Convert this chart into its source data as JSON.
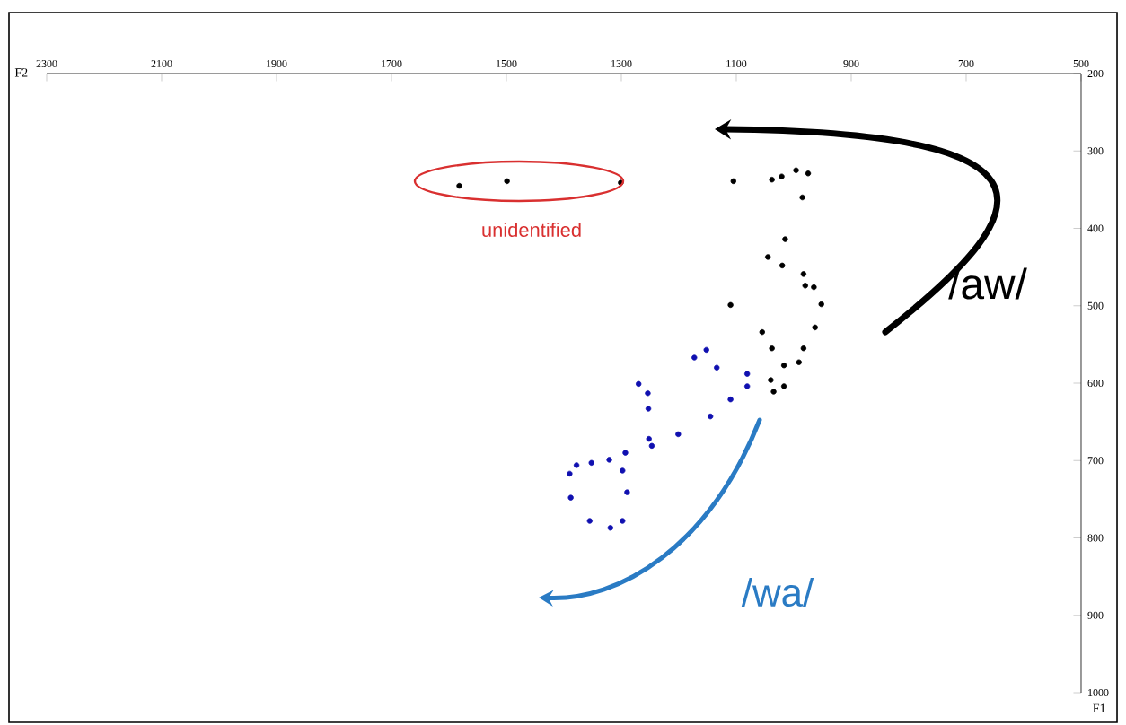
{
  "chart_data": {
    "type": "scatter",
    "xlabel": "F2",
    "ylabel": "F1",
    "xlim": [
      2300,
      500
    ],
    "xticks": [
      2300,
      2100,
      1900,
      1700,
      1500,
      1300,
      1100,
      900,
      700,
      500
    ],
    "ylim": [
      1000,
      200
    ],
    "yticks": [
      200,
      300,
      400,
      500,
      600,
      700,
      800,
      900,
      1000
    ],
    "marker": "circle",
    "series": [
      {
        "color": "#000000",
        "x": [
          1105,
          1038,
          1021,
          996,
          975,
          985,
          1015,
          1045,
          1020,
          983,
          980,
          965,
          952,
          1110,
          963,
          1055,
          1038,
          983,
          1017,
          991,
          1040,
          1017,
          1035
        ],
        "values": [
          339,
          337,
          333,
          325,
          329,
          360,
          414,
          437,
          448,
          459,
          474,
          476,
          498,
          499,
          528,
          534,
          555,
          555,
          577,
          573,
          596,
          604,
          611
        ]
      },
      {
        "color": "#1010b0",
        "x": [
          1173,
          1152,
          1134,
          1081,
          1081,
          1110,
          1270,
          1254,
          1253,
          1145,
          1201,
          1252,
          1247,
          1293,
          1321,
          1298,
          1352,
          1378,
          1390,
          1388,
          1290,
          1355,
          1319,
          1298
        ],
        "values": [
          567,
          557,
          580,
          588,
          604,
          621,
          601,
          613,
          633,
          643,
          666,
          672,
          681,
          690,
          699,
          713,
          703,
          706,
          717,
          748,
          741,
          778,
          787,
          778
        ]
      },
      {
        "color": "#000000",
        "x": [
          1582,
          1499,
          1301
        ],
        "values": [
          345,
          339,
          341
        ]
      }
    ],
    "annotations": [
      "unidentified",
      "/aw/",
      "/wa/"
    ]
  }
}
